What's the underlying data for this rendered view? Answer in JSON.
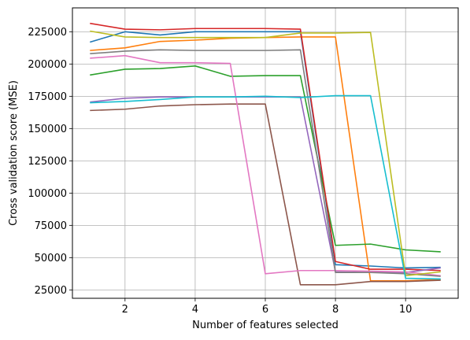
{
  "chart_data": {
    "type": "line",
    "title": "",
    "xlabel": "Number of features selected",
    "ylabel": "Cross validation score (MSE)",
    "xlim": [
      0.5,
      11.5
    ],
    "ylim": [
      18500,
      243500
    ],
    "grid": true,
    "legend": "none",
    "xticks": [
      2,
      4,
      6,
      8,
      10
    ],
    "xtick_labels": [
      "2",
      "4",
      "6",
      "8",
      "10"
    ],
    "yticks": [
      25000,
      50000,
      75000,
      100000,
      125000,
      150000,
      175000,
      200000,
      225000
    ],
    "ytick_labels": [
      "25000",
      "50000",
      "75000",
      "100000",
      "125000",
      "150000",
      "175000",
      "200000",
      "225000"
    ],
    "x": [
      1,
      2,
      3,
      4,
      5,
      6,
      7,
      8,
      9,
      10,
      11
    ],
    "series": [
      {
        "color": "#1f77b4",
        "values": [
          217000,
          225000,
          222500,
          225000,
          225000,
          225000,
          225000,
          44500,
          43500,
          42000,
          42500
        ]
      },
      {
        "color": "#ff7f0e",
        "values": [
          210500,
          212500,
          217500,
          218500,
          220000,
          220500,
          221000,
          221000,
          32000,
          32000,
          33000
        ]
      },
      {
        "color": "#2ca02c",
        "values": [
          191500,
          196000,
          196500,
          198500,
          190500,
          191000,
          191000,
          59500,
          60500,
          56000,
          54500
        ]
      },
      {
        "color": "#d62728",
        "values": [
          231500,
          227000,
          226500,
          227500,
          227500,
          227500,
          227000,
          47000,
          41000,
          41000,
          40000
        ]
      },
      {
        "color": "#9467bd",
        "values": [
          170500,
          173500,
          174500,
          174500,
          174500,
          174500,
          174500,
          39000,
          38500,
          38500,
          42000
        ]
      },
      {
        "color": "#8c564b",
        "values": [
          164000,
          165000,
          167500,
          168500,
          169000,
          169000,
          29000,
          29000,
          31500,
          31500,
          32500
        ]
      },
      {
        "color": "#e377c2",
        "values": [
          204500,
          206500,
          201000,
          201000,
          200500,
          37500,
          40000,
          40000,
          39500,
          39000,
          36000
        ]
      },
      {
        "color": "#7f7f7f",
        "values": [
          208000,
          210000,
          211000,
          210500,
          210500,
          210500,
          211000,
          38500,
          38500,
          37500,
          35500
        ]
      },
      {
        "color": "#bcbd22",
        "values": [
          225500,
          221000,
          220500,
          220500,
          220500,
          220500,
          224000,
          224000,
          224500,
          36000,
          39000
        ]
      },
      {
        "color": "#17becf",
        "values": [
          170000,
          171000,
          172500,
          174500,
          174500,
          175000,
          174000,
          175500,
          175500,
          34000,
          33500
        ]
      }
    ]
  }
}
